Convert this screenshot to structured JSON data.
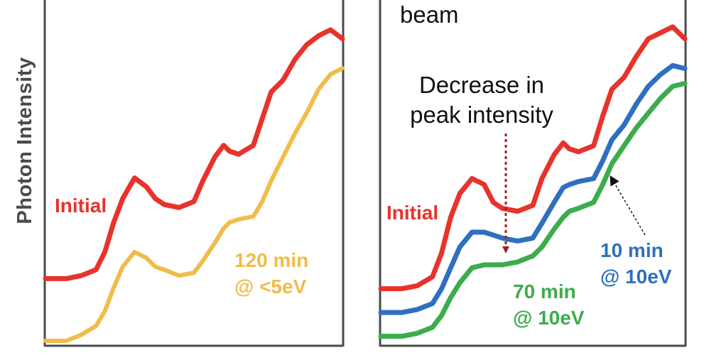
{
  "y_axis_label": "Photon Intensity",
  "chart_data": [
    {
      "type": "line",
      "title": "",
      "xlabel": "",
      "ylabel": "Photon Intensity",
      "grid": false,
      "legend": "none",
      "series": [
        {
          "name": "Initial",
          "color": "#e8322b",
          "x": [
            0,
            0.07,
            0.12,
            0.17,
            0.2,
            0.23,
            0.26,
            0.3,
            0.34,
            0.37,
            0.4,
            0.45,
            0.5,
            0.53,
            0.57,
            0.6,
            0.62,
            0.65,
            0.7,
            0.73,
            0.76,
            0.8,
            0.84,
            0.88,
            0.92,
            0.96,
            1.0
          ],
          "y": [
            0.21,
            0.21,
            0.22,
            0.24,
            0.3,
            0.4,
            0.48,
            0.55,
            0.52,
            0.48,
            0.46,
            0.45,
            0.47,
            0.54,
            0.62,
            0.66,
            0.64,
            0.63,
            0.66,
            0.75,
            0.84,
            0.88,
            0.95,
            1.0,
            1.03,
            1.05,
            1.02
          ]
        },
        {
          "name": "120 min @ <5eV",
          "color": "#f0bc4a",
          "x": [
            0,
            0.07,
            0.12,
            0.17,
            0.2,
            0.23,
            0.26,
            0.3,
            0.34,
            0.37,
            0.4,
            0.45,
            0.5,
            0.53,
            0.57,
            0.6,
            0.62,
            0.65,
            0.7,
            0.73,
            0.76,
            0.8,
            0.84,
            0.88,
            0.92,
            0.96,
            1.0
          ],
          "y": [
            0.0,
            0.0,
            0.02,
            0.05,
            0.1,
            0.18,
            0.25,
            0.3,
            0.28,
            0.25,
            0.24,
            0.22,
            0.23,
            0.27,
            0.33,
            0.38,
            0.4,
            0.41,
            0.42,
            0.47,
            0.54,
            0.62,
            0.7,
            0.77,
            0.85,
            0.9,
            0.92
          ]
        }
      ],
      "annotations": [
        {
          "text": "Initial",
          "color": "#e8322b"
        },
        {
          "text": "120 min",
          "color": "#f0bc4a"
        },
        {
          "text": "@ <5eV",
          "color": "#f0bc4a"
        }
      ]
    },
    {
      "type": "line",
      "title": "",
      "xlabel": "",
      "ylabel": "",
      "grid": false,
      "legend": "none",
      "title_fragment": "beam",
      "series": [
        {
          "name": "Initial",
          "color": "#e8322b",
          "x": [
            0,
            0.07,
            0.12,
            0.17,
            0.2,
            0.23,
            0.26,
            0.3,
            0.34,
            0.37,
            0.4,
            0.45,
            0.5,
            0.53,
            0.57,
            0.6,
            0.62,
            0.65,
            0.7,
            0.73,
            0.76,
            0.8,
            0.84,
            0.88,
            0.92,
            0.96,
            1.0
          ],
          "y": [
            0.18,
            0.18,
            0.19,
            0.22,
            0.3,
            0.42,
            0.5,
            0.55,
            0.53,
            0.47,
            0.45,
            0.44,
            0.46,
            0.55,
            0.63,
            0.67,
            0.65,
            0.64,
            0.66,
            0.76,
            0.85,
            0.89,
            0.96,
            1.02,
            1.04,
            1.06,
            1.02
          ]
        },
        {
          "name": "10 min @ 10eV",
          "color": "#2f6fbf",
          "x": [
            0,
            0.07,
            0.12,
            0.17,
            0.2,
            0.23,
            0.26,
            0.3,
            0.34,
            0.37,
            0.4,
            0.45,
            0.5,
            0.53,
            0.57,
            0.6,
            0.62,
            0.65,
            0.7,
            0.73,
            0.76,
            0.8,
            0.84,
            0.88,
            0.92,
            0.96,
            1.0
          ],
          "y": [
            0.1,
            0.1,
            0.11,
            0.13,
            0.18,
            0.25,
            0.32,
            0.37,
            0.37,
            0.36,
            0.35,
            0.34,
            0.35,
            0.4,
            0.47,
            0.52,
            0.53,
            0.54,
            0.55,
            0.61,
            0.68,
            0.73,
            0.8,
            0.86,
            0.9,
            0.93,
            0.92
          ]
        },
        {
          "name": "70 min @ 10eV",
          "color": "#3cac4c",
          "x": [
            0,
            0.07,
            0.12,
            0.17,
            0.2,
            0.23,
            0.26,
            0.3,
            0.34,
            0.37,
            0.4,
            0.45,
            0.5,
            0.53,
            0.57,
            0.6,
            0.62,
            0.65,
            0.7,
            0.73,
            0.76,
            0.8,
            0.84,
            0.88,
            0.92,
            0.96,
            1.0
          ],
          "y": [
            0.02,
            0.02,
            0.03,
            0.05,
            0.09,
            0.15,
            0.2,
            0.25,
            0.26,
            0.26,
            0.26,
            0.27,
            0.29,
            0.32,
            0.38,
            0.42,
            0.44,
            0.45,
            0.47,
            0.53,
            0.6,
            0.66,
            0.72,
            0.77,
            0.82,
            0.86,
            0.87
          ]
        }
      ],
      "annotations": [
        {
          "text": "Decrease in",
          "color": "#111111"
        },
        {
          "text": "peak intensity",
          "color": "#111111"
        },
        {
          "text": "Initial",
          "color": "#e8322b"
        },
        {
          "text": "10 min",
          "color": "#2f6fbf"
        },
        {
          "text": "@ 10eV",
          "color": "#2f6fbf"
        },
        {
          "text": "70 min",
          "color": "#3cac4c"
        },
        {
          "text": "@ 10eV",
          "color": "#3cac4c"
        }
      ]
    }
  ]
}
